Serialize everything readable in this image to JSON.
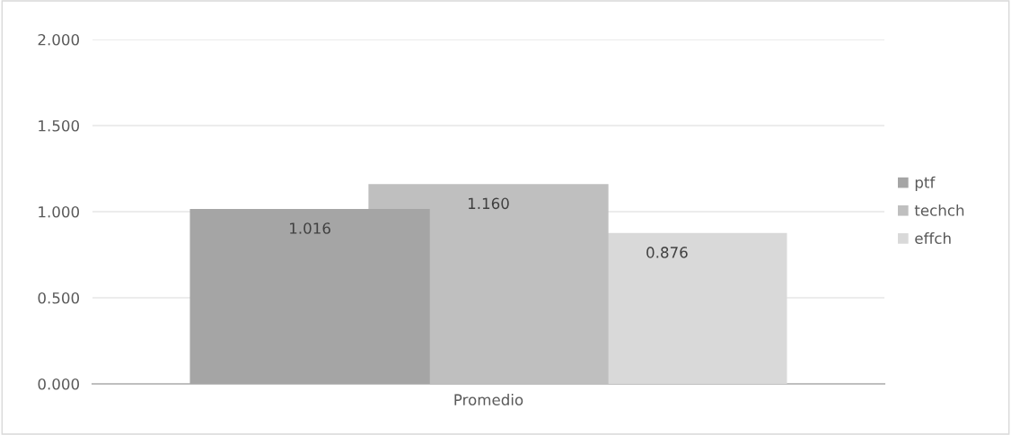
{
  "chart_data": {
    "type": "bar",
    "categories": [
      "Promedio"
    ],
    "series": [
      {
        "name": "ptf",
        "color": "#a5a5a5",
        "values": [
          1.016
        ]
      },
      {
        "name": "techch",
        "color": "#bfbfbf",
        "values": [
          1.16
        ]
      },
      {
        "name": "effch",
        "color": "#d9d9d9",
        "values": [
          0.876
        ]
      }
    ],
    "value_labels": [
      [
        "1.016"
      ],
      [
        "1.160"
      ],
      [
        "0.876"
      ]
    ],
    "ylim": [
      0,
      2
    ],
    "yticks": [
      {
        "value": 0,
        "label": "0.000"
      },
      {
        "value": 0.5,
        "label": "0.500"
      },
      {
        "value": 1,
        "label": "1.000"
      },
      {
        "value": 1.5,
        "label": "1.500"
      },
      {
        "value": 2,
        "label": "2.000"
      }
    ],
    "grid": "y",
    "legend": "right"
  }
}
